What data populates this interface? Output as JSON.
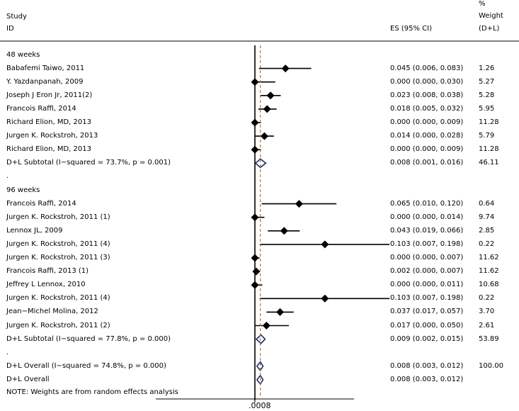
{
  "header": {
    "study": "Study",
    "id": "ID",
    "es": "ES (95% CI)",
    "weight_pct": "%",
    "weight": "Weight",
    "weight_method": "(D+L)"
  },
  "x_tick_label": ".0008",
  "footnote": "NOTE: Weights are from random effects analysis",
  "colors": {
    "marker": "#000000",
    "summary": "#1f2a6b",
    "null_line": "#000000",
    "overall_line": "#c0722a"
  },
  "chart_data": {
    "type": "forest",
    "x_axis_tick": 0.0008,
    "xlim": [
      0.0,
      0.2
    ],
    "overall_line_x": 0.008,
    "groups": [
      {
        "label": "48 weeks",
        "studies": [
          {
            "study": "Babafemi Taiwo, 2011",
            "es": 0.045,
            "lo": 0.006,
            "hi": 0.083,
            "es_text": "0.045 (0.006, 0.083)",
            "weight": "1.26"
          },
          {
            "study": "Y. Yazdanpanah, 2009",
            "es": 0.0,
            "lo": 0.0,
            "hi": 0.03,
            "es_text": "0.000 (0.000, 0.030)",
            "weight": "5.27"
          },
          {
            "study": "Joseph J Eron Jr, 2011(2)",
            "es": 0.023,
            "lo": 0.008,
            "hi": 0.038,
            "es_text": "0.023 (0.008, 0.038)",
            "weight": "5.28"
          },
          {
            "study": "Francois Raffi, 2014",
            "es": 0.018,
            "lo": 0.005,
            "hi": 0.032,
            "es_text": "0.018 (0.005, 0.032)",
            "weight": "5.95"
          },
          {
            "study": "Richard Elion, MD, 2013",
            "es": 0.0,
            "lo": 0.0,
            "hi": 0.009,
            "es_text": "0.000 (0.000, 0.009)",
            "weight": "11.28"
          },
          {
            "study": "Jurgen K. Rockstroh, 2013",
            "es": 0.014,
            "lo": 0.0,
            "hi": 0.028,
            "es_text": "0.014 (0.000, 0.028)",
            "weight": "5.79"
          },
          {
            "study": "Richard Elion, MD, 2013",
            "es": 0.0,
            "lo": 0.0,
            "hi": 0.009,
            "es_text": "0.000 (0.000, 0.009)",
            "weight": "11.28"
          }
        ],
        "subtotal": {
          "label": "D+L Subtotal  (I−squared = 73.7%, p = 0.001)",
          "es": 0.008,
          "lo": 0.001,
          "hi": 0.016,
          "es_text": "0.008 (0.001, 0.016)",
          "weight": "46.11"
        }
      },
      {
        "label": "96 weeks",
        "studies": [
          {
            "study": "Francois Raffi, 2014",
            "es": 0.065,
            "lo": 0.01,
            "hi": 0.12,
            "es_text": "0.065 (0.010, 0.120)",
            "weight": "0.64"
          },
          {
            "study": "Jurgen K. Rockstroh, 2011 (1)",
            "es": 0.0,
            "lo": 0.0,
            "hi": 0.014,
            "es_text": "0.000 (0.000, 0.014)",
            "weight": "9.74"
          },
          {
            "study": "Lennox JL, 2009",
            "es": 0.043,
            "lo": 0.019,
            "hi": 0.066,
            "es_text": "0.043 (0.019, 0.066)",
            "weight": "2.85"
          },
          {
            "study": "Jurgen K. Rockstroh, 2011 (4)",
            "es": 0.103,
            "lo": 0.007,
            "hi": 0.198,
            "es_text": "0.103 (0.007, 0.198)",
            "weight": "0.22"
          },
          {
            "study": "Jurgen K. Rockstroh, 2011 (3)",
            "es": 0.0,
            "lo": 0.0,
            "hi": 0.007,
            "es_text": "0.000 (0.000, 0.007)",
            "weight": "11.62"
          },
          {
            "study": "Francois Raffi, 2013 (1)",
            "es": 0.002,
            "lo": 0.0,
            "hi": 0.007,
            "es_text": "0.002 (0.000, 0.007)",
            "weight": "11.62"
          },
          {
            "study": "Jeffrey L Lennox, 2010",
            "es": 0.0,
            "lo": 0.0,
            "hi": 0.011,
            "es_text": "0.000 (0.000, 0.011)",
            "weight": "10.68"
          },
          {
            "study": "Jurgen K. Rockstroh, 2011 (4)",
            "es": 0.103,
            "lo": 0.007,
            "hi": 0.198,
            "es_text": "0.103 (0.007, 0.198)",
            "weight": "0.22"
          },
          {
            "study": "Jean−Michel Molina, 2012",
            "es": 0.037,
            "lo": 0.017,
            "hi": 0.057,
            "es_text": "0.037 (0.017, 0.057)",
            "weight": "3.70"
          },
          {
            "study": "Jurgen K. Rockstroh, 2011 (2)",
            "es": 0.017,
            "lo": 0.0,
            "hi": 0.05,
            "es_text": "0.017 (0.000, 0.050)",
            "weight": "2.61"
          }
        ],
        "subtotal": {
          "label": "D+L Subtotal  (I−squared = 77.8%, p = 0.000)",
          "es": 0.009,
          "lo": 0.002,
          "hi": 0.015,
          "es_text": "0.009 (0.002, 0.015)",
          "weight": "53.89"
        }
      }
    ],
    "overall": [
      {
        "label": "D+L Overall  (I−squared = 74.8%, p = 0.000)",
        "es": 0.008,
        "lo": 0.003,
        "hi": 0.012,
        "es_text": "0.008 (0.003, 0.012)",
        "weight": "100.00"
      },
      {
        "label": "D+L Overall",
        "es": 0.008,
        "lo": 0.003,
        "hi": 0.012,
        "es_text": "0.008 (0.003, 0.012)",
        "weight": ""
      }
    ],
    "separator": "."
  }
}
